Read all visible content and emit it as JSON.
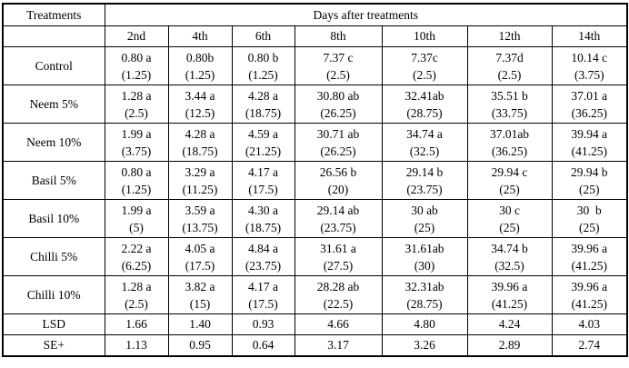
{
  "colors": {
    "background": "#ffffff",
    "border": "#000000",
    "text": "#000000"
  },
  "table": {
    "corner_header": "Treatments",
    "group_header": "Days after treatments",
    "day_headers": [
      "2nd",
      "4th",
      "6th",
      "8th",
      "10th",
      "12th",
      "14th"
    ],
    "rows": [
      {
        "treatment": "Control",
        "cells": [
          {
            "value": "0.80 a",
            "paren": "(1.25)"
          },
          {
            "value": "0.80b",
            "paren": "(1.25)"
          },
          {
            "value": "0.80 b",
            "paren": "(1.25)"
          },
          {
            "value": "7.37 c",
            "paren": "(2.5)"
          },
          {
            "value": "7.37c",
            "paren": "(2.5)"
          },
          {
            "value": "7.37d",
            "paren": "(2.5)"
          },
          {
            "value": "10.14 c",
            "paren": "(3.75)"
          }
        ]
      },
      {
        "treatment": "Neem 5%",
        "cells": [
          {
            "value": "1.28 a",
            "paren": "(2.5)"
          },
          {
            "value": "3.44 a",
            "paren": "(12.5)"
          },
          {
            "value": "4.28 a",
            "paren": "(18.75)"
          },
          {
            "value": "30.80 ab",
            "paren": "(26.25)"
          },
          {
            "value": "32.41ab",
            "paren": "(28.75)"
          },
          {
            "value": "35.51 b",
            "paren": "(33.75)"
          },
          {
            "value": "37.01 a",
            "paren": "(36.25)"
          }
        ]
      },
      {
        "treatment": "Neem 10%",
        "cells": [
          {
            "value": "1.99 a",
            "paren": "(3.75)"
          },
          {
            "value": "4.28 a",
            "paren": "(18.75)"
          },
          {
            "value": "4.59 a",
            "paren": "(21.25)"
          },
          {
            "value": "30.71 ab",
            "paren": "(26.25)"
          },
          {
            "value": "34.74 a",
            "paren": "(32.5)"
          },
          {
            "value": "37.01ab",
            "paren": "(36.25)"
          },
          {
            "value": "39.94 a",
            "paren": "(41.25)"
          }
        ]
      },
      {
        "treatment": "Basil 5%",
        "cells": [
          {
            "value": "0.80 a",
            "paren": "(1.25)"
          },
          {
            "value": "3.29 a",
            "paren": "(11.25)"
          },
          {
            "value": "4.17 a",
            "paren": "(17.5)"
          },
          {
            "value": "26.56 b",
            "paren": "(20)"
          },
          {
            "value": "29.14 b",
            "paren": "(23.75)"
          },
          {
            "value": "29.94 c",
            "paren": "(25)"
          },
          {
            "value": "29.94 b",
            "paren": "(25)"
          }
        ]
      },
      {
        "treatment": "Basil 10%",
        "cells": [
          {
            "value": "1.99 a",
            "paren": "(5)"
          },
          {
            "value": "3.59 a",
            "paren": "(13.75)"
          },
          {
            "value": "4.30 a",
            "paren": "(18.75)"
          },
          {
            "value": "29.14 ab",
            "paren": "(23.75)"
          },
          {
            "value": "30 ab",
            "paren": "(25)"
          },
          {
            "value": "30 c",
            "paren": "(25)"
          },
          {
            "value": "30  b",
            "paren": "(25)"
          }
        ]
      },
      {
        "treatment": "Chilli 5%",
        "cells": [
          {
            "value": "2.22 a",
            "paren": "(6.25)"
          },
          {
            "value": "4.05 a",
            "paren": "(17.5)"
          },
          {
            "value": "4.84 a",
            "paren": "(23.75)"
          },
          {
            "value": "31.61 a",
            "paren": "(27.5)"
          },
          {
            "value": "31.61ab",
            "paren": "(30)"
          },
          {
            "value": "34.74 b",
            "paren": "(32.5)"
          },
          {
            "value": "39.96 a",
            "paren": "(41.25)"
          }
        ]
      },
      {
        "treatment": "Chilli 10%",
        "cells": [
          {
            "value": "1.28 a",
            "paren": "(2.5)"
          },
          {
            "value": "3.82 a",
            "paren": "(15)"
          },
          {
            "value": "4.17 a",
            "paren": "(17.5)"
          },
          {
            "value": "28.28 ab",
            "paren": "(22.5)"
          },
          {
            "value": "32.31ab",
            "paren": "(28.75)"
          },
          {
            "value": "39.96 a",
            "paren": "(41.25)"
          },
          {
            "value": "39.96 a",
            "paren": "(41.25)"
          }
        ]
      }
    ],
    "stat_rows": [
      {
        "label": "LSD",
        "values": [
          "1.66",
          "1.40",
          "0.93",
          "4.66",
          "4.80",
          "4.24",
          "4.03"
        ]
      },
      {
        "label": "SE+",
        "values": [
          "1.13",
          "0.95",
          "0.64",
          "3.17",
          "3.26",
          "2.89",
          "2.74"
        ]
      }
    ]
  }
}
